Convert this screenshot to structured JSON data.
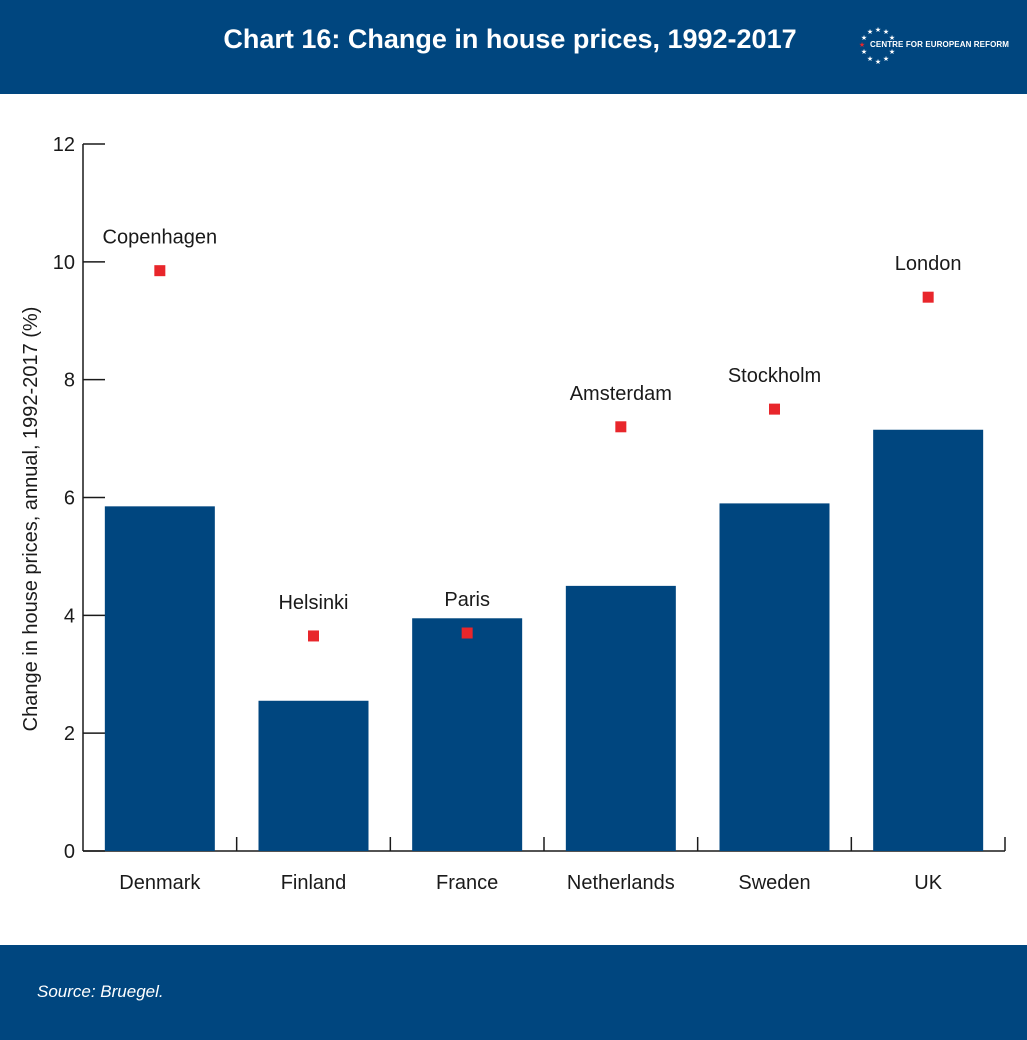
{
  "header": {
    "title": "Chart 16: Change in house prices, 1992-2017",
    "logo_text": "CENTRE FOR EUROPEAN REFORM"
  },
  "footer": {
    "source": "Source:  Bruegel."
  },
  "colors": {
    "header_bg": "#00467f",
    "bar": "#00467f",
    "marker": "#e8262b"
  },
  "chart_data": {
    "type": "bar",
    "title": "",
    "ylabel": "Change in house prices, annual, 1992-2017 (%)",
    "xlabel": "",
    "ylim": [
      0,
      12
    ],
    "yticks": [
      0,
      2,
      4,
      6,
      8,
      10,
      12
    ],
    "categories": [
      "Denmark",
      "Finland",
      "France",
      "Netherlands",
      "Sweden",
      "UK"
    ],
    "values": [
      5.85,
      2.55,
      3.95,
      4.5,
      5.9,
      7.15
    ],
    "markers": [
      {
        "label": "Copenhagen",
        "value": 9.85
      },
      {
        "label": "Helsinki",
        "value": 3.65
      },
      {
        "label": "Paris",
        "value": 3.7
      },
      {
        "label": "Amsterdam",
        "value": 7.2
      },
      {
        "label": "Stockholm",
        "value": 7.5
      },
      {
        "label": "London",
        "value": 9.4
      }
    ],
    "grid": false,
    "legend": "none"
  }
}
